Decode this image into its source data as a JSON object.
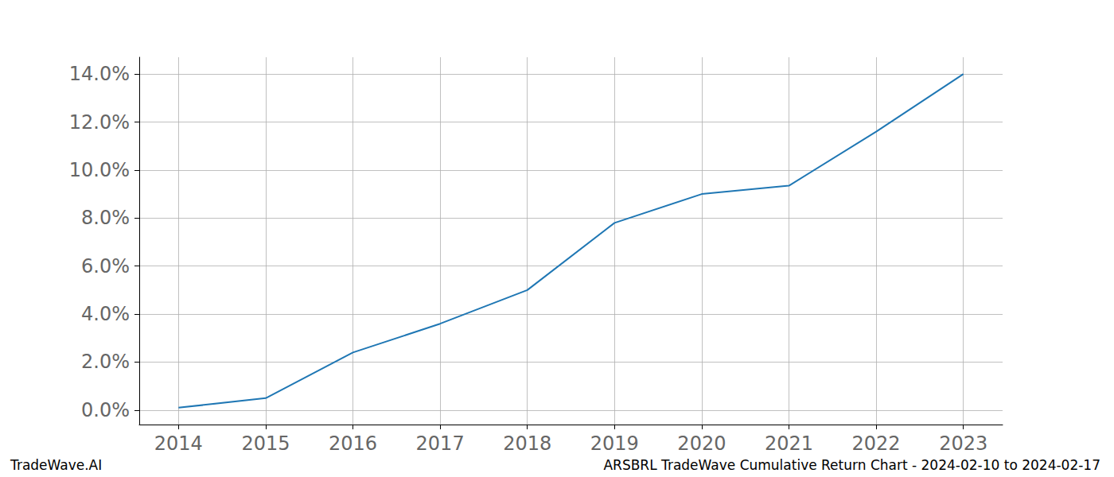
{
  "chart_data": {
    "type": "line",
    "title": "ARSBRL TradeWave Cumulative Return Chart - 2024-02-10 to 2024-02-17",
    "annotations": [
      "TradeWave.AI"
    ],
    "x": [
      2014,
      2015,
      2016,
      2017,
      2018,
      2019,
      2020,
      2021,
      2022,
      2023
    ],
    "values": [
      0.1,
      0.5,
      2.4,
      3.6,
      5.0,
      7.8,
      9.0,
      9.35,
      11.6,
      14.0
    ],
    "color": "#1f77b4",
    "xlim": [
      2013.55,
      2023.45
    ],
    "xticks": [
      2014,
      2015,
      2016,
      2017,
      2018,
      2019,
      2020,
      2021,
      2022,
      2023
    ],
    "ylim": [
      -0.6,
      14.7
    ],
    "yticks": [
      {
        "value": 0,
        "label": "0.0%"
      },
      {
        "value": 2,
        "label": "2.0%"
      },
      {
        "value": 4,
        "label": "4.0%"
      },
      {
        "value": 6,
        "label": "6.0%"
      },
      {
        "value": 8,
        "label": "8.0%"
      },
      {
        "value": 10,
        "label": "10.0%"
      },
      {
        "value": 12,
        "label": "12.0%"
      },
      {
        "value": 14,
        "label": "14.0%"
      }
    ],
    "grid": true
  }
}
